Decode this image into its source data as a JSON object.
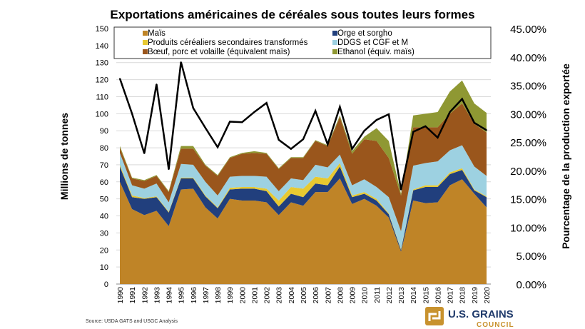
{
  "chart_data": {
    "type": "area",
    "stacked": true,
    "title": "Exportations américaines de céréales sous toutes leurs formes",
    "ylabel": "Millions de tonnes",
    "y2label": "Pourcentage de la production exportée",
    "ylim": [
      0,
      150
    ],
    "y2lim": [
      0,
      45
    ],
    "yticks": [
      "0",
      "10",
      "20",
      "30",
      "40",
      "50",
      "60",
      "70",
      "80",
      "90",
      "100",
      "110",
      "120",
      "130",
      "140",
      "150"
    ],
    "y2ticks": [
      "0.00%",
      "5.00%",
      "10.00%",
      "15.00%",
      "20.00%",
      "25.00%",
      "30.00%",
      "35.00%",
      "40.00%",
      "45.00%"
    ],
    "grid": true,
    "legend_position": "top",
    "categories": [
      "1990",
      "1991",
      "1992",
      "1993",
      "1994",
      "1995",
      "1996",
      "1997",
      "1998",
      "1999",
      "2000",
      "2001",
      "2002",
      "2003",
      "2004",
      "2005",
      "2006",
      "2007",
      "2008",
      "2009",
      "2010",
      "2011",
      "2012",
      "2013",
      "2014",
      "2015",
      "2016",
      "2017",
      "2018",
      "2019",
      "2020"
    ],
    "series": [
      {
        "name": "Maïs",
        "color": "#BF8427",
        "values": [
          60,
          44,
          40.5,
          43,
          34,
          55.5,
          56,
          45,
          38.5,
          50,
          49,
          49,
          48,
          40.5,
          48,
          46,
          54,
          54,
          62,
          47,
          50,
          46,
          39,
          19,
          49,
          47.5,
          48,
          58,
          61.5,
          53,
          45
        ]
      },
      {
        "name": "Orge et sorgho",
        "color": "#213F7D",
        "values": [
          9,
          7,
          9.5,
          8,
          8,
          6.5,
          6,
          6.5,
          6,
          5.5,
          7,
          7,
          6.5,
          5,
          5,
          5,
          5,
          4,
          7,
          4,
          3,
          3,
          2,
          1,
          6,
          9.5,
          9,
          6.5,
          5.5,
          2,
          6
        ]
      },
      {
        "name": "Produits céréaliers secondaires transformés",
        "color": "#E8C930",
        "values": [
          1,
          1,
          0.5,
          0.5,
          0.5,
          0.5,
          0.5,
          0.5,
          0.5,
          1,
          1,
          1,
          1.5,
          3.5,
          4,
          5,
          4,
          4,
          2,
          1,
          1,
          1,
          0.5,
          0.5,
          0.5,
          1,
          1,
          1,
          1,
          0.5,
          0.5
        ]
      },
      {
        "name": "DDGS et CGF et M",
        "color": "#9DD1E1",
        "values": [
          7,
          6,
          5.5,
          7.5,
          5.5,
          8,
          7.5,
          8,
          7,
          6.5,
          6.5,
          6.5,
          7,
          5.5,
          5,
          5,
          7,
          6.5,
          5,
          6,
          7.5,
          7,
          9.5,
          10.5,
          14,
          13,
          14,
          13,
          13.5,
          13.5,
          12
        ]
      },
      {
        "name": "Bœuf, porc et volaille (équivalent maïs)",
        "color": "#9A561C",
        "values": [
          3,
          4,
          4.5,
          4.5,
          6,
          9,
          9.5,
          9.5,
          11.5,
          11,
          13,
          13.5,
          13.5,
          13,
          12,
          13,
          14,
          12.5,
          22,
          18.5,
          23.5,
          27,
          23,
          21,
          22.5,
          21,
          20,
          21.5,
          24.5,
          25,
          25.5
        ]
      },
      {
        "name": "Ethanol (équiv. maïs)",
        "color": "#8F9833",
        "values": [
          1,
          0.5,
          0.5,
          0.5,
          0.5,
          1.5,
          1.5,
          0.5,
          0.5,
          0.5,
          0.5,
          1,
          0.5,
          0.5,
          0.5,
          0.5,
          0.5,
          0.5,
          1,
          1.5,
          1.5,
          7.5,
          10,
          1,
          7,
          8,
          9,
          13,
          13.5,
          12,
          11.5
        ]
      }
    ],
    "line_series": {
      "axis": "right",
      "color": "#000000",
      "values": [
        36.2,
        30,
        23,
        35.2,
        20.2,
        39.1,
        31,
        27.5,
        24.1,
        28.6,
        28.5,
        30.3,
        31.9,
        25.4,
        23.8,
        25.5,
        30.5,
        24.6,
        31.2,
        23.8,
        27,
        28.9,
        29.9,
        16.6,
        26.8,
        27.8,
        25.8,
        30.3,
        32.6,
        28.4,
        27.1
      ]
    }
  },
  "source": "Source: USDA GATS and USGC Analysis",
  "logo": {
    "line1": "U.S. GRAINS",
    "line2": "COUNCIL"
  }
}
